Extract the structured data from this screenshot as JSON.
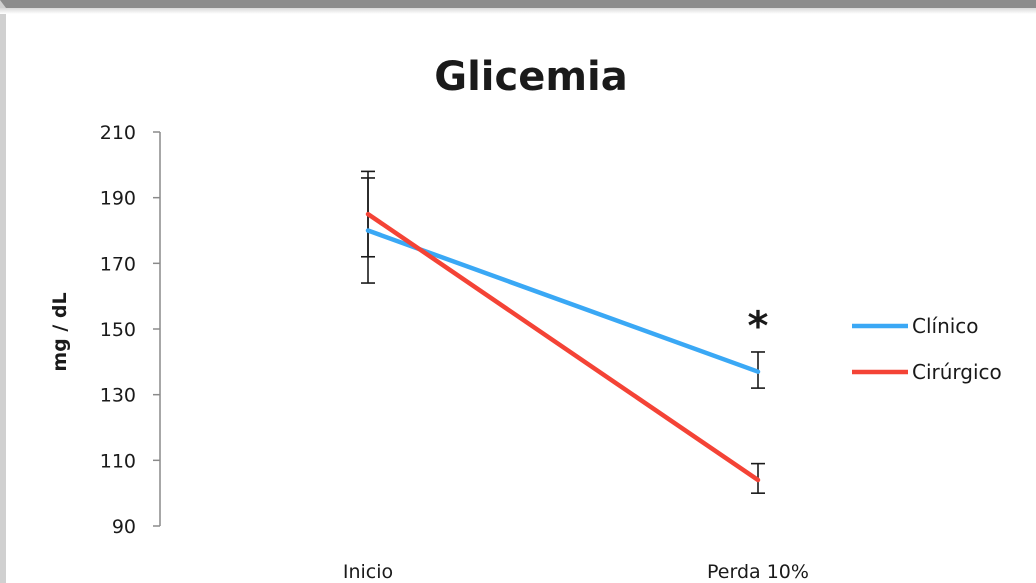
{
  "chart_data": {
    "type": "line",
    "title": "Glicemia",
    "ylabel": "mg / dL",
    "xlabel": "",
    "categories": [
      "Inicio",
      "Perda 10%"
    ],
    "ylim": [
      90,
      210
    ],
    "yticks": [
      90,
      110,
      130,
      150,
      170,
      190,
      210
    ],
    "grid": false,
    "legend_position": "right",
    "series": [
      {
        "name": "Clínico",
        "color": "#3aa8f5",
        "values": [
          180,
          137
        ],
        "error_low": [
          164,
          132
        ],
        "error_high": [
          196,
          143
        ]
      },
      {
        "name": "Cirúrgico",
        "color": "#f44336",
        "values": [
          185,
          104
        ],
        "error_low": [
          172,
          100
        ],
        "error_high": [
          198,
          109
        ]
      }
    ],
    "annotations": [
      {
        "text": "*",
        "category": "Perda 10%",
        "y": 151
      }
    ]
  }
}
